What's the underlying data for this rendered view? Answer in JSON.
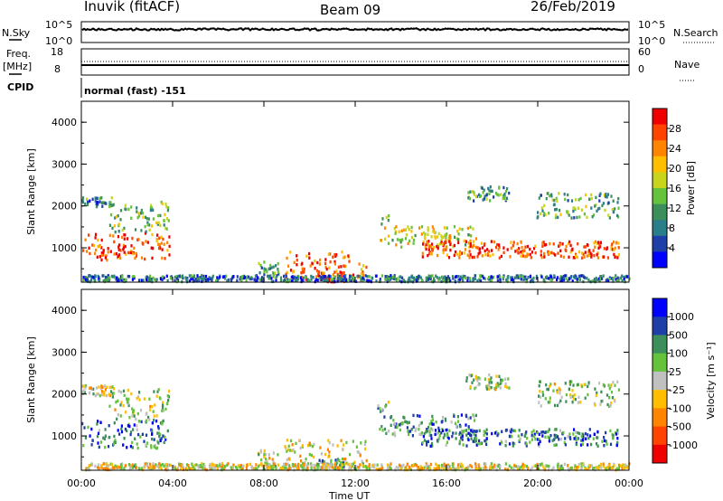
{
  "header": {
    "station": "Inuvik (fitACF)",
    "beam": "Beam 09",
    "date": "26/Feb/2019"
  },
  "noise_panel": {
    "left_label": "N.Sky",
    "left_ticks": [
      "10^5",
      "10^0"
    ],
    "right_ticks": [
      "10^5",
      "10^0"
    ],
    "right_label": "N.Search"
  },
  "freq_panel": {
    "left_label_1": "Freq.",
    "left_label_2": "[MHz]",
    "left_ticks": [
      "18",
      "8"
    ],
    "right_ticks": [
      "60",
      "0"
    ],
    "right_label": "Nave"
  },
  "cpid": {
    "label": "CPID",
    "value": "normal (fast) -151"
  },
  "chart_data": [
    {
      "type": "heatmap",
      "quantity": "power",
      "ylabel": "Slant Range [km]",
      "xlabel": "Time UT",
      "ylim": [
        180,
        4500
      ],
      "yticks": [
        "4000",
        "3000",
        "2000",
        "1000"
      ],
      "xticks": [
        "00:00",
        "04:00",
        "08:00",
        "12:00",
        "16:00",
        "20:00",
        "00:00"
      ],
      "colorbar": {
        "label": "Power [dB]",
        "ticks": [
          "28",
          "24",
          "20",
          "16",
          "12",
          "8",
          "4"
        ],
        "colors": [
          "#0000ff",
          "#1f3fa8",
          "#2a7e8a",
          "#3c8f5a",
          "#66c23c",
          "#c9d41d",
          "#ffbe00",
          "#ff8400",
          "#ff4400",
          "#ee0000"
        ]
      }
    },
    {
      "type": "heatmap",
      "quantity": "velocity",
      "ylabel": "Slant Range [km]",
      "xlabel": "Time UT",
      "ylim": [
        180,
        4500
      ],
      "yticks": [
        "4000",
        "3000",
        "2000",
        "1000"
      ],
      "xticks": [
        "00:00",
        "04:00",
        "08:00",
        "12:00",
        "16:00",
        "20:00",
        "00:00"
      ],
      "colorbar": {
        "label": "Velocity [m s⁻¹]",
        "ticks": [
          "1000",
          "500",
          "100",
          "25",
          "-25",
          "-100",
          "-500",
          "-1000"
        ],
        "colors": [
          "#ee0000",
          "#ff4400",
          "#ff8400",
          "#ffbe00",
          "#c0c0c0",
          "#66c23c",
          "#3c8f5a",
          "#1f3fa8",
          "#0000ff"
        ]
      }
    }
  ]
}
